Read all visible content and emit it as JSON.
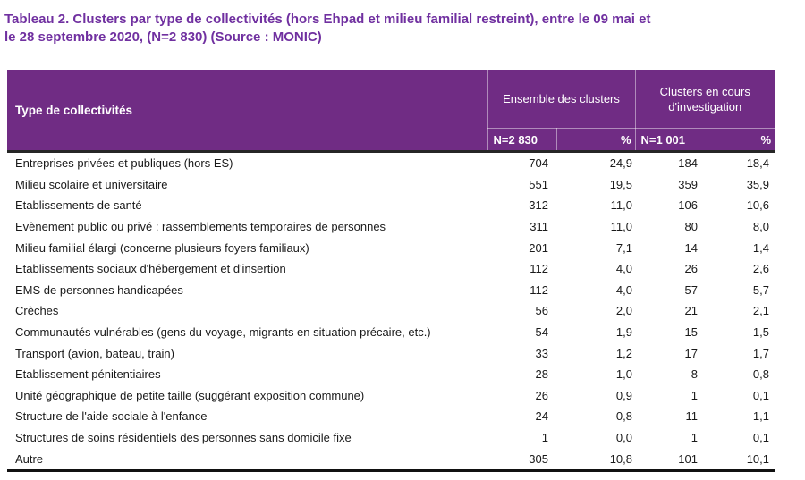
{
  "title": {
    "line1": "Tableau 2. Clusters par type de collectivités (hors Ehpad et milieu familial restreint), entre le 09 mai et",
    "line2": "le 28 septembre 2020, (N=2 830) (Source : MONIC)"
  },
  "colors": {
    "title": "#7030A0",
    "header_bg": "#702C84",
    "header_text": "#FFFFFF",
    "header_divider": "rgba(255,255,255,0.45)",
    "heavy_rule": "#262626",
    "bottom_rule": "#111111",
    "body_text": "#1A1A1A",
    "page_bg": "#FFFFFF"
  },
  "table": {
    "columns": {
      "type_label": "Type de collectivités",
      "group1_label": "Ensemble des clusters",
      "group2_label": "Clusters en cours d'investigation",
      "sub_headers": [
        "N=2 830",
        "%",
        "N=1 001",
        "%"
      ]
    },
    "rows": [
      {
        "label": "Entreprises privées et publiques (hors ES)",
        "n_total": "704",
        "pct_total": "24,9",
        "n_invest": "184",
        "pct_invest": "18,4"
      },
      {
        "label": "Milieu scolaire et universitaire",
        "n_total": "551",
        "pct_total": "19,5",
        "n_invest": "359",
        "pct_invest": "35,9"
      },
      {
        "label": "Etablissements de santé",
        "n_total": "312",
        "pct_total": "11,0",
        "n_invest": "106",
        "pct_invest": "10,6"
      },
      {
        "label": "Evènement public ou privé : rassemblements temporaires de personnes",
        "n_total": "311",
        "pct_total": "11,0",
        "n_invest": "80",
        "pct_invest": "8,0"
      },
      {
        "label": "Milieu familial élargi (concerne plusieurs foyers familiaux)",
        "n_total": "201",
        "pct_total": "7,1",
        "n_invest": "14",
        "pct_invest": "1,4"
      },
      {
        "label": "Etablissements sociaux d'hébergement et d'insertion",
        "n_total": "112",
        "pct_total": "4,0",
        "n_invest": "26",
        "pct_invest": "2,6"
      },
      {
        "label": "EMS de personnes handicapées",
        "n_total": "112",
        "pct_total": "4,0",
        "n_invest": "57",
        "pct_invest": "5,7"
      },
      {
        "label": "Crèches",
        "n_total": "56",
        "pct_total": "2,0",
        "n_invest": "21",
        "pct_invest": "2,1"
      },
      {
        "label": "Communautés vulnérables (gens du voyage, migrants en situation précaire, etc.)",
        "n_total": "54",
        "pct_total": "1,9",
        "n_invest": "15",
        "pct_invest": "1,5"
      },
      {
        "label": "Transport (avion, bateau, train)",
        "n_total": "33",
        "pct_total": "1,2",
        "n_invest": "17",
        "pct_invest": "1,7"
      },
      {
        "label": "Etablissement pénitentiaires",
        "n_total": "28",
        "pct_total": "1,0",
        "n_invest": "8",
        "pct_invest": "0,8"
      },
      {
        "label": "Unité géographique de petite taille (suggérant exposition commune)",
        "n_total": "26",
        "pct_total": "0,9",
        "n_invest": "1",
        "pct_invest": "0,1"
      },
      {
        "label": "Structure de l'aide sociale à l'enfance",
        "n_total": "24",
        "pct_total": "0,8",
        "n_invest": "11",
        "pct_invest": "1,1"
      },
      {
        "label": "Structures de soins résidentiels des personnes sans domicile fixe",
        "n_total": "1",
        "pct_total": "0,0",
        "n_invest": "1",
        "pct_invest": "0,1"
      },
      {
        "label": "Autre",
        "n_total": "305",
        "pct_total": "10,8",
        "n_invest": "101",
        "pct_invest": "10,1"
      }
    ]
  }
}
